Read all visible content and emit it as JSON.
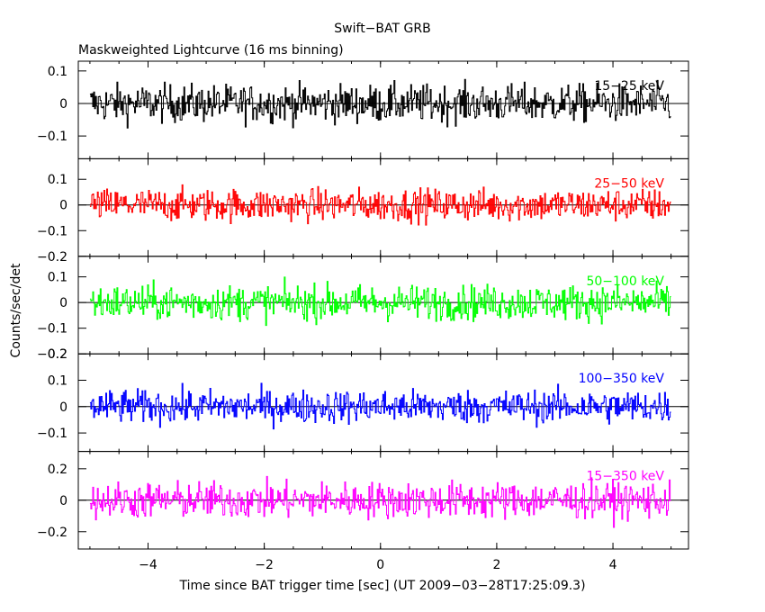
{
  "chart_data": {
    "type": "line",
    "title": "Swift−BAT GRB",
    "subtitle": "Maskweighted Lightcurve (16 ms binning)",
    "xlabel": "Time since BAT trigger time [sec] (UT 2009−03−28T17:25:09.3)",
    "ylabel": "Counts/sec/det",
    "xlim": [
      -5.2,
      5.3
    ],
    "x_ticks": [
      -4,
      -2,
      0,
      2,
      4
    ],
    "x_tick_labels": [
      "−4",
      "−2",
      "0",
      "2",
      "4"
    ],
    "x_range": [
      -5.0,
      5.0
    ],
    "bin_width": 0.016,
    "panels": [
      {
        "label": "15−25 keV",
        "color": "#000000",
        "ylim": [
          -0.17,
          0.13
        ],
        "y_ticks": [
          -0.1,
          0,
          0.1
        ],
        "y_tick_labels": [
          "−0.1",
          "0",
          "0.1"
        ],
        "noise_amplitude": 0.055
      },
      {
        "label": "25−50 keV",
        "color": "#ff0000",
        "ylim": [
          -0.2,
          0.18
        ],
        "y_ticks": [
          -0.2,
          -0.1,
          0,
          0.1
        ],
        "y_tick_labels": [
          "−0.2",
          "−0.1",
          "0",
          "0.1"
        ],
        "noise_amplitude": 0.06
      },
      {
        "label": "50−100 keV",
        "color": "#00ff00",
        "ylim": [
          -0.2,
          0.18
        ],
        "y_ticks": [
          -0.2,
          -0.1,
          0,
          0.1
        ],
        "y_tick_labels": [
          "−0.2",
          "−0.1",
          "0",
          "0.1"
        ],
        "noise_amplitude": 0.065
      },
      {
        "label": "100−350 keV",
        "color": "#0000ff",
        "ylim": [
          -0.17,
          0.2
        ],
        "y_ticks": [
          -0.1,
          0,
          0.1,
          0.2
        ],
        "y_tick_labels": [
          "−0.1",
          "0",
          "0.1",
          "0.2"
        ],
        "noise_amplitude": 0.06
      },
      {
        "label": "15−350 keV",
        "color": "#ff00ff",
        "ylim": [
          -0.31,
          0.31
        ],
        "y_ticks": [
          -0.2,
          0,
          0.2
        ],
        "y_tick_labels": [
          "−0.2",
          "0",
          "0.2"
        ],
        "noise_amplitude": 0.11
      }
    ]
  }
}
